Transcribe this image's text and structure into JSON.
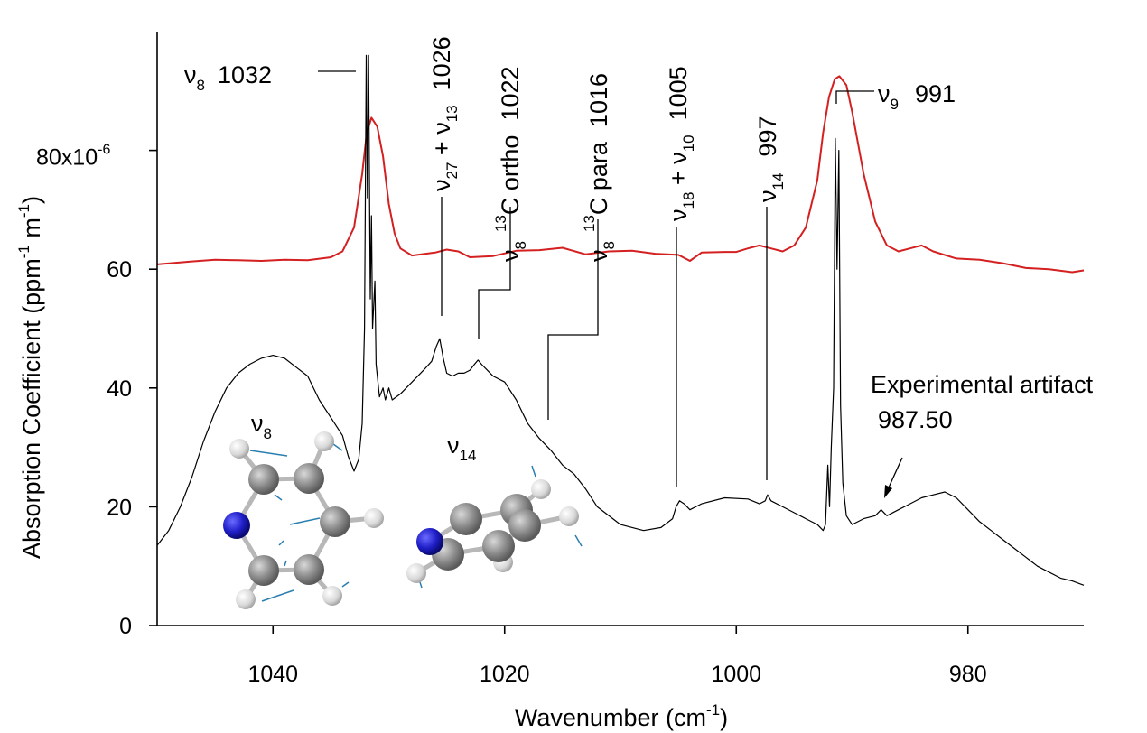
{
  "chart_data": {
    "type": "line",
    "xlabel": "Wavenumber (cm",
    "xlabel_sup": "-1",
    "xlabel_close": ")",
    "ylabel": "Absorption Coefficient (ppm",
    "ylabel_sup1": "-1",
    "ylabel_mid": " m",
    "ylabel_sup2": "-1",
    "ylabel_close": ")",
    "xlim": [
      1050,
      970
    ],
    "ylim": [
      0,
      100
    ],
    "x_ticks": [
      1040,
      1020,
      1000,
      980
    ],
    "y_ticks": [
      {
        "value": 0,
        "label": "0"
      },
      {
        "value": 20,
        "label": "20"
      },
      {
        "value": 40,
        "label": "40"
      },
      {
        "value": 60,
        "label": "60"
      }
    ],
    "y_top_tick": {
      "value": 80,
      "label": "80x10",
      "sup": "-6"
    },
    "colors": {
      "red_series": "#d42020",
      "black_series": "#000000",
      "axis": "#000000"
    },
    "series": [
      {
        "color": "#d42020",
        "points": [
          [
            1050,
            60.8
          ],
          [
            1047,
            61.3
          ],
          [
            1045,
            61.6
          ],
          [
            1043,
            61.5
          ],
          [
            1041,
            61.4
          ],
          [
            1039,
            61.6
          ],
          [
            1037,
            61.5
          ],
          [
            1035,
            62.0
          ],
          [
            1034,
            63.0
          ],
          [
            1033,
            67.0
          ],
          [
            1032.3,
            76.0
          ],
          [
            1031.9,
            83.0
          ],
          [
            1031.5,
            85.5
          ],
          [
            1031.0,
            84.0
          ],
          [
            1030.5,
            79.0
          ],
          [
            1030,
            71.0
          ],
          [
            1029.5,
            66.0
          ],
          [
            1029,
            63.5
          ],
          [
            1028,
            62.3
          ],
          [
            1026,
            62.8
          ],
          [
            1025,
            63.3
          ],
          [
            1024,
            63.0
          ],
          [
            1023,
            62.0
          ],
          [
            1021,
            62.2
          ],
          [
            1019,
            63.1
          ],
          [
            1017,
            63.2
          ],
          [
            1015,
            63.6
          ],
          [
            1013,
            62.5
          ],
          [
            1011,
            63.0
          ],
          [
            1009,
            63.1
          ],
          [
            1007,
            62.6
          ],
          [
            1005,
            62.4
          ],
          [
            1004,
            61.4
          ],
          [
            1003,
            62.8
          ],
          [
            1001,
            62.9
          ],
          [
            1000,
            62.9
          ],
          [
            999,
            63.5
          ],
          [
            998,
            64.0
          ],
          [
            997,
            63.5
          ],
          [
            996,
            63.0
          ],
          [
            995,
            64.0
          ],
          [
            994,
            67.0
          ],
          [
            993,
            75.0
          ],
          [
            992.5,
            83.0
          ],
          [
            992,
            89.0
          ],
          [
            991.5,
            92.0
          ],
          [
            991.1,
            92.5
          ],
          [
            990.5,
            91.0
          ],
          [
            990,
            86.5
          ],
          [
            989,
            76.0
          ],
          [
            988,
            68.0
          ],
          [
            987,
            64.0
          ],
          [
            986,
            63.0
          ],
          [
            985,
            63.5
          ],
          [
            984,
            64.0
          ],
          [
            983,
            63.0
          ],
          [
            981,
            61.8
          ],
          [
            979,
            61.6
          ],
          [
            977,
            61.0
          ],
          [
            975,
            60.2
          ],
          [
            973,
            60.0
          ],
          [
            971,
            59.5
          ],
          [
            970,
            59.8
          ]
        ]
      },
      {
        "color": "#000000",
        "points": [
          [
            1050,
            13.5
          ],
          [
            1049,
            16.0
          ],
          [
            1048,
            20.0
          ],
          [
            1047,
            25.0
          ],
          [
            1046,
            31.0
          ],
          [
            1045,
            36.0
          ],
          [
            1044,
            40.0
          ],
          [
            1043,
            42.5
          ],
          [
            1042,
            44.0
          ],
          [
            1041,
            45.0
          ],
          [
            1040,
            45.5
          ],
          [
            1039,
            45.0
          ],
          [
            1038,
            43.5
          ],
          [
            1037,
            42.0
          ],
          [
            1036,
            38.0
          ],
          [
            1035,
            35.0
          ],
          [
            1034,
            32.0
          ],
          [
            1033.5,
            28.5
          ],
          [
            1033,
            26.0
          ],
          [
            1032.6,
            28.0
          ],
          [
            1032.3,
            34.0
          ],
          [
            1032.1,
            50.0
          ],
          [
            1031.95,
            96.0
          ],
          [
            1031.85,
            72.0
          ],
          [
            1031.75,
            96.0
          ],
          [
            1031.6,
            55.0
          ],
          [
            1031.5,
            69.0
          ],
          [
            1031.4,
            50.0
          ],
          [
            1031.2,
            58.0
          ],
          [
            1031.1,
            44.0
          ],
          [
            1030.8,
            38.5
          ],
          [
            1030.5,
            40.0
          ],
          [
            1030.3,
            38.0
          ],
          [
            1030,
            40.0
          ],
          [
            1029.7,
            38.0
          ],
          [
            1029,
            39.0
          ],
          [
            1028,
            41.0
          ],
          [
            1027,
            43.0
          ],
          [
            1026.3,
            44.5
          ],
          [
            1025.9,
            47.0
          ],
          [
            1025.6,
            48.3
          ],
          [
            1025.3,
            45.0
          ],
          [
            1025,
            42.5
          ],
          [
            1024.5,
            42.0
          ],
          [
            1024,
            42.5
          ],
          [
            1023.5,
            42.5
          ],
          [
            1023,
            43.0
          ],
          [
            1022.6,
            44.0
          ],
          [
            1022.3,
            44.7
          ],
          [
            1022,
            44.0
          ],
          [
            1021.5,
            43.0
          ],
          [
            1021,
            42.0
          ],
          [
            1020,
            41.0
          ],
          [
            1019,
            38.0
          ],
          [
            1018,
            34.0
          ],
          [
            1017,
            31.5
          ],
          [
            1016.5,
            30.5
          ],
          [
            1016,
            29.5
          ],
          [
            1015,
            27.0
          ],
          [
            1014,
            25.5
          ],
          [
            1013,
            23.0
          ],
          [
            1012,
            20.0
          ],
          [
            1010,
            17.0
          ],
          [
            1008,
            16.0
          ],
          [
            1006.5,
            16.5
          ],
          [
            1005.5,
            18.0
          ],
          [
            1005.2,
            20.0
          ],
          [
            1004.9,
            21.0
          ],
          [
            1004.5,
            20.5
          ],
          [
            1004,
            19.5
          ],
          [
            1003,
            20.5
          ],
          [
            1001,
            21.5
          ],
          [
            999,
            21.3
          ],
          [
            998,
            20.5
          ],
          [
            997.5,
            21.0
          ],
          [
            997.3,
            22.0
          ],
          [
            997,
            21.0
          ],
          [
            996,
            20.0
          ],
          [
            995,
            19.0
          ],
          [
            994,
            18.0
          ],
          [
            993,
            17.0
          ],
          [
            992.5,
            16.0
          ],
          [
            992.3,
            17.0
          ],
          [
            992.1,
            27.0
          ],
          [
            991.95,
            20.0
          ],
          [
            991.8,
            30.0
          ],
          [
            991.6,
            40.0
          ],
          [
            991.45,
            82.0
          ],
          [
            991.3,
            60.0
          ],
          [
            991.15,
            80.0
          ],
          [
            991,
            37.0
          ],
          [
            990.8,
            24.0
          ],
          [
            990.5,
            18.5
          ],
          [
            990,
            17.0
          ],
          [
            989.5,
            17.5
          ],
          [
            989,
            18.0
          ],
          [
            988,
            18.5
          ],
          [
            987.5,
            19.5
          ],
          [
            987,
            18.5
          ],
          [
            986,
            19.5
          ],
          [
            985,
            20.5
          ],
          [
            984,
            21.5
          ],
          [
            983,
            22.0
          ],
          [
            982,
            22.5
          ],
          [
            981,
            21.5
          ],
          [
            980,
            19.5
          ],
          [
            979,
            17.5
          ],
          [
            978,
            16.0
          ],
          [
            977,
            14.5
          ],
          [
            976,
            13.0
          ],
          [
            975,
            11.5
          ],
          [
            974,
            10.0
          ],
          [
            973,
            9.0
          ],
          [
            972,
            8.0
          ],
          [
            971,
            7.5
          ],
          [
            970,
            6.8
          ]
        ]
      }
    ],
    "peaks": [
      {
        "label": "ν",
        "sub": "8",
        "value": "1032"
      },
      {
        "label": "ν",
        "sub": "27",
        "mid": " + ν",
        "sub2": "13",
        "value": "1026"
      },
      {
        "sup": "13",
        "label": "C ortho",
        "pre": "ν",
        "presub": "8",
        "value": "1022"
      },
      {
        "sup": "13",
        "label": "C para",
        "pre": "ν",
        "presub": "8",
        "value": "1016"
      },
      {
        "label": "ν",
        "sub": "18",
        "mid": " + ν",
        "sub2": "10",
        "value": "1005"
      },
      {
        "label": "ν",
        "sub": "14",
        "value": "997"
      },
      {
        "label": "ν",
        "sub": "9",
        "value": "991"
      }
    ],
    "annotation": {
      "text": "Experimental artifact",
      "value": "987.50"
    },
    "molecule_labels": [
      {
        "label": "ν",
        "sub": "8"
      },
      {
        "label": "ν",
        "sub": "14"
      }
    ]
  }
}
